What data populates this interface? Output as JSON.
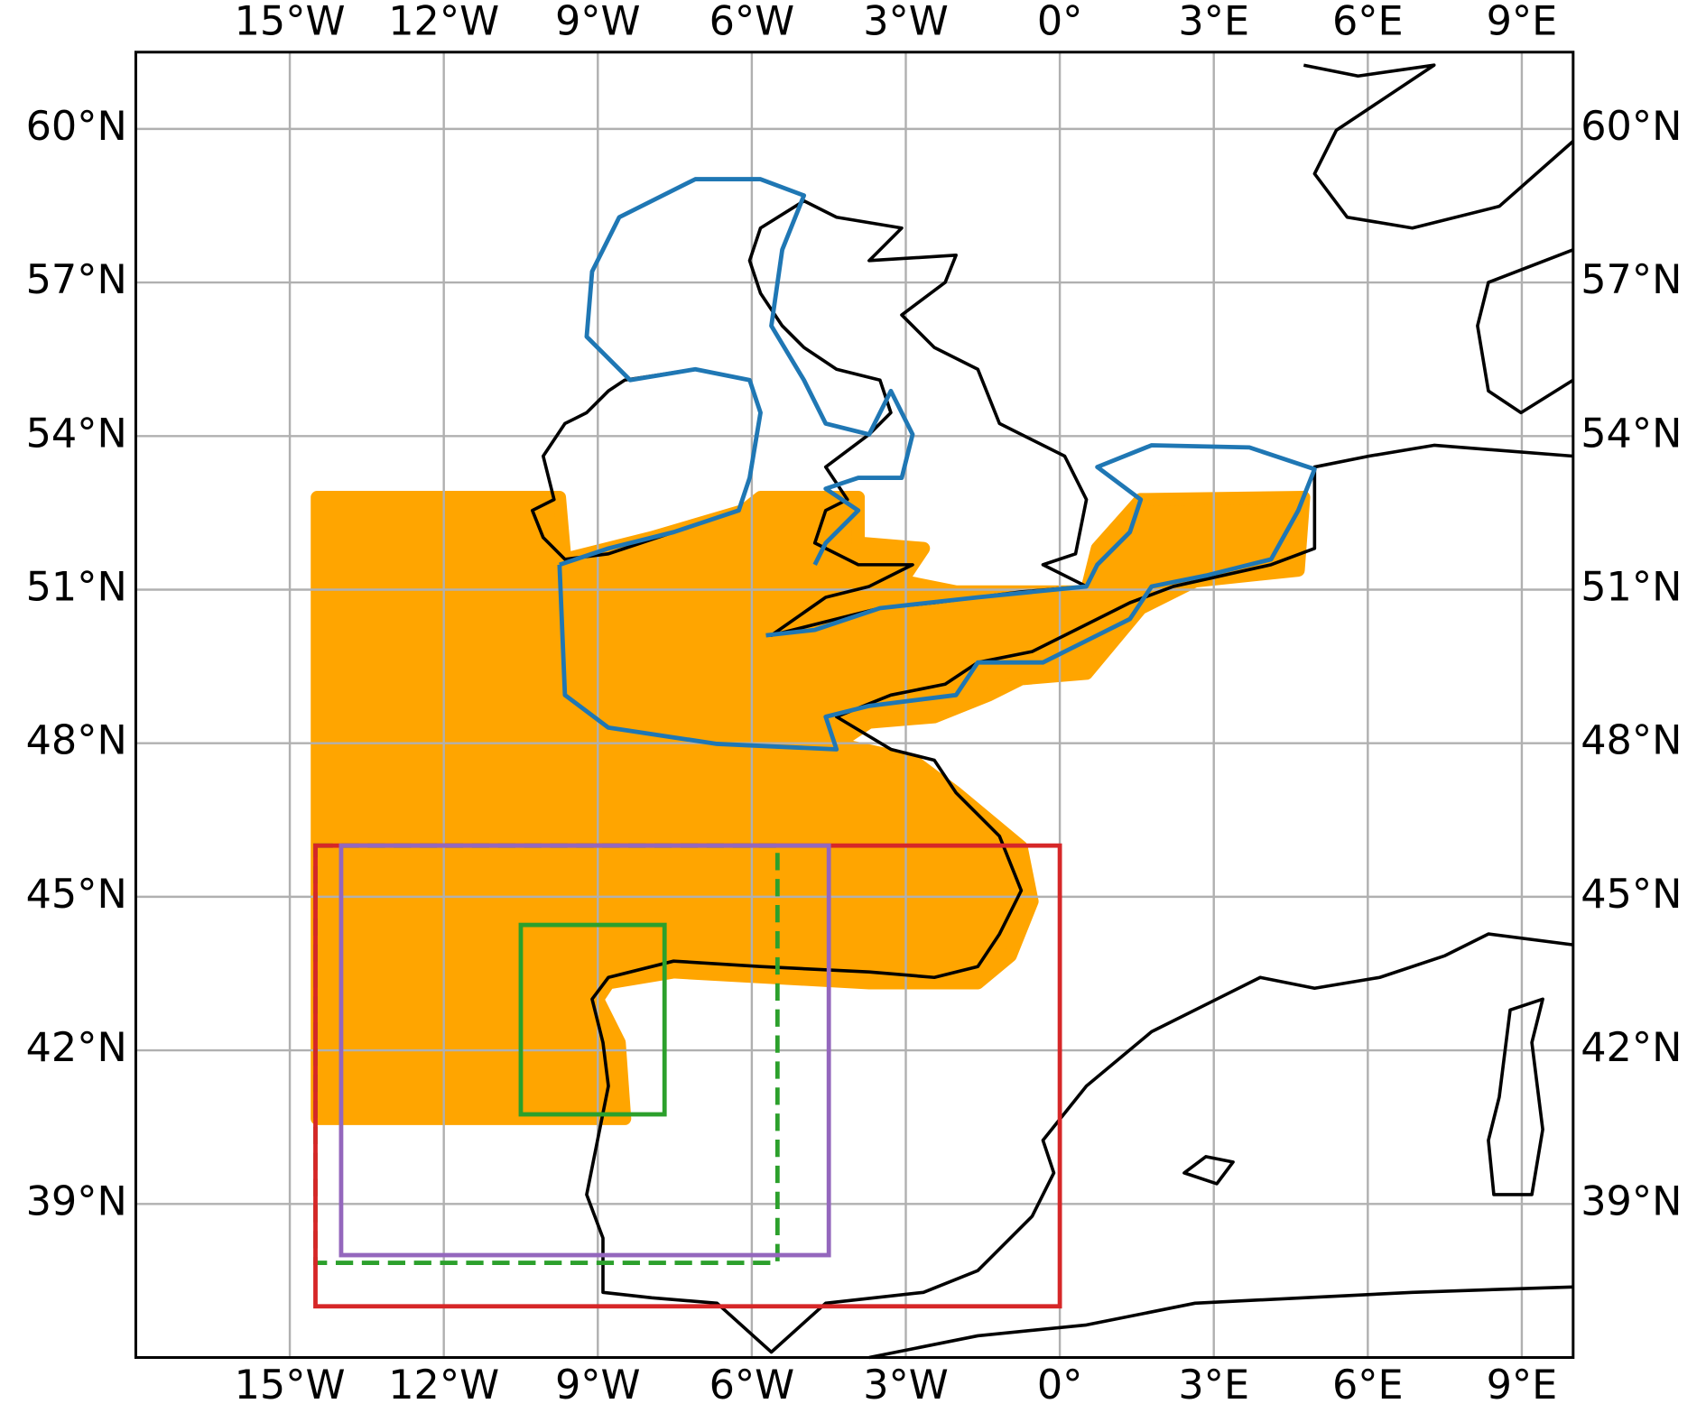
{
  "chart_data": {
    "type": "map",
    "xlim": [
      -18,
      10
    ],
    "ylim": [
      36,
      61.5
    ],
    "xticks": [
      {
        "value": -15,
        "label": "15°W"
      },
      {
        "value": -12,
        "label": "12°W"
      },
      {
        "value": -9,
        "label": "9°W"
      },
      {
        "value": -6,
        "label": "6°W"
      },
      {
        "value": -3,
        "label": "3°W"
      },
      {
        "value": 0,
        "label": "0°"
      },
      {
        "value": 3,
        "label": "3°E"
      },
      {
        "value": 6,
        "label": "6°E"
      },
      {
        "value": 9,
        "label": "9°E"
      }
    ],
    "yticks": [
      {
        "value": 39,
        "label": "39°N"
      },
      {
        "value": 42,
        "label": "42°N"
      },
      {
        "value": 45,
        "label": "45°N"
      },
      {
        "value": 48,
        "label": "48°N"
      },
      {
        "value": 51,
        "label": "51°N"
      },
      {
        "value": 54,
        "label": "54°N"
      },
      {
        "value": 57,
        "label": "57°N"
      },
      {
        "value": 60,
        "label": "60°N"
      }
    ],
    "grid": true,
    "boxes": [
      {
        "color": "#2ca02c",
        "linestyle": "dashed",
        "lon": [
          -14.5,
          -5.5
        ],
        "lat": [
          37.85,
          46
        ]
      },
      {
        "color": "#d62728",
        "linestyle": "solid",
        "lon": [
          -14.5,
          0
        ],
        "lat": [
          37,
          46
        ]
      },
      {
        "color": "#9467bd",
        "linestyle": "solid",
        "lon": [
          -14,
          -4.5
        ],
        "lat": [
          38,
          46
        ]
      },
      {
        "color": "#2ca02c",
        "linestyle": "solid",
        "lon": [
          -10.5,
          -7.7
        ],
        "lat": [
          40.75,
          44.45
        ]
      }
    ]
  }
}
